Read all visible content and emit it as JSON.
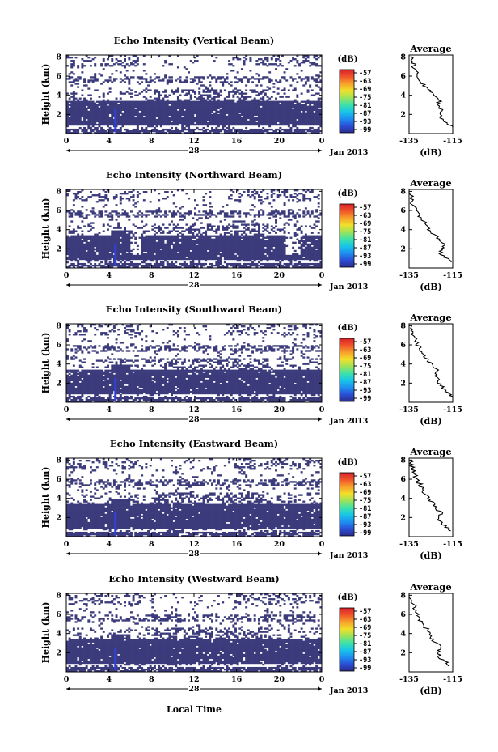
{
  "chart_data": [
    {
      "type": "heatmap",
      "title": "Echo Intensity (Vertical Beam)",
      "ylabel": "Height (km)",
      "x_ticks": [
        "0",
        "4",
        "8",
        "12",
        "16",
        "20",
        "0"
      ],
      "date_label": "28",
      "month_label": "Jan 2013",
      "y_ticks": [
        "2",
        "4",
        "6",
        "8"
      ],
      "colorbar_unit": "(dB)",
      "colorbar_ticks": [
        "-57",
        "-63",
        "-69",
        "-75",
        "-81",
        "-87",
        "-93",
        "-99"
      ],
      "average": {
        "title": "Average",
        "xlabel": "(dB)",
        "x_ticks": [
          "-135",
          "-115"
        ],
        "y_ticks": [
          "2",
          "4",
          "6",
          "8"
        ],
        "profile": [
          [
            0.6,
            -115
          ],
          [
            1.0,
            -117
          ],
          [
            1.5,
            -120
          ],
          [
            2.0,
            -121
          ],
          [
            2.5,
            -120
          ],
          [
            3.0,
            -122
          ],
          [
            3.5,
            -121
          ],
          [
            4.0,
            -124
          ],
          [
            4.5,
            -126
          ],
          [
            5.0,
            -128
          ],
          [
            5.5,
            -130
          ],
          [
            6.0,
            -131
          ],
          [
            6.5,
            -132
          ],
          [
            7.0,
            -133
          ],
          [
            7.5,
            -133
          ],
          [
            8.0,
            -134
          ]
        ]
      }
    },
    {
      "type": "heatmap",
      "title": "Echo Intensity (Northward Beam)",
      "ylabel": "Height (km)",
      "x_ticks": [
        "0",
        "4",
        "8",
        "12",
        "16",
        "20",
        "0"
      ],
      "date_label": "28",
      "month_label": "Jan 2013",
      "y_ticks": [
        "2",
        "4",
        "6",
        "8"
      ],
      "colorbar_unit": "(dB)",
      "colorbar_ticks": [
        "-57",
        "-63",
        "-69",
        "-75",
        "-81",
        "-87",
        "-93",
        "-99"
      ],
      "average": {
        "title": "Average",
        "xlabel": "(dB)",
        "x_ticks": [
          "-135",
          "-115"
        ],
        "y_ticks": [
          "2",
          "4",
          "6",
          "8"
        ],
        "profile": [
          [
            0.6,
            -116
          ],
          [
            1.0,
            -118
          ],
          [
            1.5,
            -121
          ],
          [
            2.0,
            -120
          ],
          [
            2.5,
            -119
          ],
          [
            3.0,
            -121
          ],
          [
            3.5,
            -124
          ],
          [
            4.0,
            -126
          ],
          [
            4.5,
            -127
          ],
          [
            5.0,
            -129
          ],
          [
            5.5,
            -131
          ],
          [
            6.0,
            -131
          ],
          [
            6.5,
            -133
          ],
          [
            7.0,
            -134
          ],
          [
            7.5,
            -134
          ],
          [
            8.0,
            -135
          ]
        ]
      }
    },
    {
      "type": "heatmap",
      "title": "Echo Intensity (Southward Beam)",
      "ylabel": "Height (km)",
      "x_ticks": [
        "0",
        "4",
        "8",
        "12",
        "16",
        "20",
        "0"
      ],
      "date_label": "28",
      "month_label": "Jan 2013",
      "y_ticks": [
        "2",
        "4",
        "6",
        "8"
      ],
      "colorbar_unit": "(dB)",
      "colorbar_ticks": [
        "-57",
        "-63",
        "-69",
        "-75",
        "-81",
        "-87",
        "-93",
        "-99"
      ],
      "average": {
        "title": "Average",
        "xlabel": "(dB)",
        "x_ticks": [
          "-135",
          "-115"
        ],
        "y_ticks": [
          "2",
          "4",
          "6",
          "8"
        ],
        "profile": [
          [
            0.6,
            -115
          ],
          [
            1.0,
            -117
          ],
          [
            1.5,
            -119
          ],
          [
            2.0,
            -121
          ],
          [
            2.5,
            -122
          ],
          [
            3.0,
            -123
          ],
          [
            3.5,
            -122
          ],
          [
            4.0,
            -125
          ],
          [
            4.5,
            -127
          ],
          [
            5.0,
            -128
          ],
          [
            5.5,
            -130
          ],
          [
            6.0,
            -131
          ],
          [
            6.5,
            -132
          ],
          [
            7.0,
            -133
          ],
          [
            7.5,
            -134
          ],
          [
            8.0,
            -134
          ]
        ]
      }
    },
    {
      "type": "heatmap",
      "title": "Echo Intensity (Eastward Beam)",
      "ylabel": "Height (km)",
      "x_ticks": [
        "0",
        "4",
        "8",
        "12",
        "16",
        "20",
        "0"
      ],
      "date_label": "28",
      "month_label": "Jan 2013",
      "y_ticks": [
        "2",
        "4",
        "6",
        "8"
      ],
      "colorbar_unit": "(dB)",
      "colorbar_ticks": [
        "-57",
        "-63",
        "-69",
        "-75",
        "-81",
        "-87",
        "-93",
        "-99"
      ],
      "average": {
        "title": "Average",
        "xlabel": "(dB)",
        "x_ticks": [
          "-135",
          "-115"
        ],
        "y_ticks": [
          "2",
          "4",
          "6",
          "8"
        ],
        "profile": [
          [
            0.6,
            -116
          ],
          [
            1.0,
            -118
          ],
          [
            1.5,
            -120
          ],
          [
            2.0,
            -122
          ],
          [
            2.5,
            -120
          ],
          [
            3.0,
            -123
          ],
          [
            3.5,
            -124
          ],
          [
            4.0,
            -126
          ],
          [
            4.5,
            -128
          ],
          [
            5.0,
            -129
          ],
          [
            5.5,
            -130
          ],
          [
            6.0,
            -132
          ],
          [
            6.5,
            -132
          ],
          [
            7.0,
            -133
          ],
          [
            7.5,
            -134
          ],
          [
            8.0,
            -134
          ]
        ]
      }
    },
    {
      "type": "heatmap",
      "title": "Echo Intensity (Westward Beam)",
      "ylabel": "Height (km)",
      "x_ticks": [
        "0",
        "4",
        "8",
        "12",
        "16",
        "20",
        "0"
      ],
      "date_label": "28",
      "month_label": "Jan 2013",
      "y_ticks": [
        "2",
        "4",
        "6",
        "8"
      ],
      "colorbar_unit": "(dB)",
      "colorbar_ticks": [
        "-57",
        "-63",
        "-69",
        "-75",
        "-81",
        "-87",
        "-93",
        "-99"
      ],
      "average": {
        "title": "Average",
        "xlabel": "(dB)",
        "x_ticks": [
          "-135",
          "-115"
        ],
        "y_ticks": [
          "2",
          "4",
          "6",
          "8"
        ],
        "profile": [
          [
            0.6,
            -117
          ],
          [
            1.0,
            -118
          ],
          [
            1.5,
            -121
          ],
          [
            2.0,
            -122
          ],
          [
            2.5,
            -121
          ],
          [
            3.0,
            -122
          ],
          [
            3.5,
            -125
          ],
          [
            4.0,
            -126
          ],
          [
            4.5,
            -127
          ],
          [
            5.0,
            -129
          ],
          [
            5.5,
            -130
          ],
          [
            6.0,
            -131
          ],
          [
            6.5,
            -132
          ],
          [
            7.0,
            -133
          ],
          [
            7.5,
            -134
          ],
          [
            8.0,
            -135
          ]
        ]
      }
    }
  ],
  "figure": {
    "xlabel": "Local Time",
    "colors": {
      "echo": "#3b3b7c",
      "echo_bright": "#2e42d8",
      "background": "#ffffff",
      "colormap": [
        "#2b2c8e",
        "#2a4fd6",
        "#1d8ff0",
        "#18c6e8",
        "#3ee2a8",
        "#9be35a",
        "#f2e02a",
        "#f7a12a",
        "#f0542a",
        "#d8212a"
      ]
    }
  }
}
